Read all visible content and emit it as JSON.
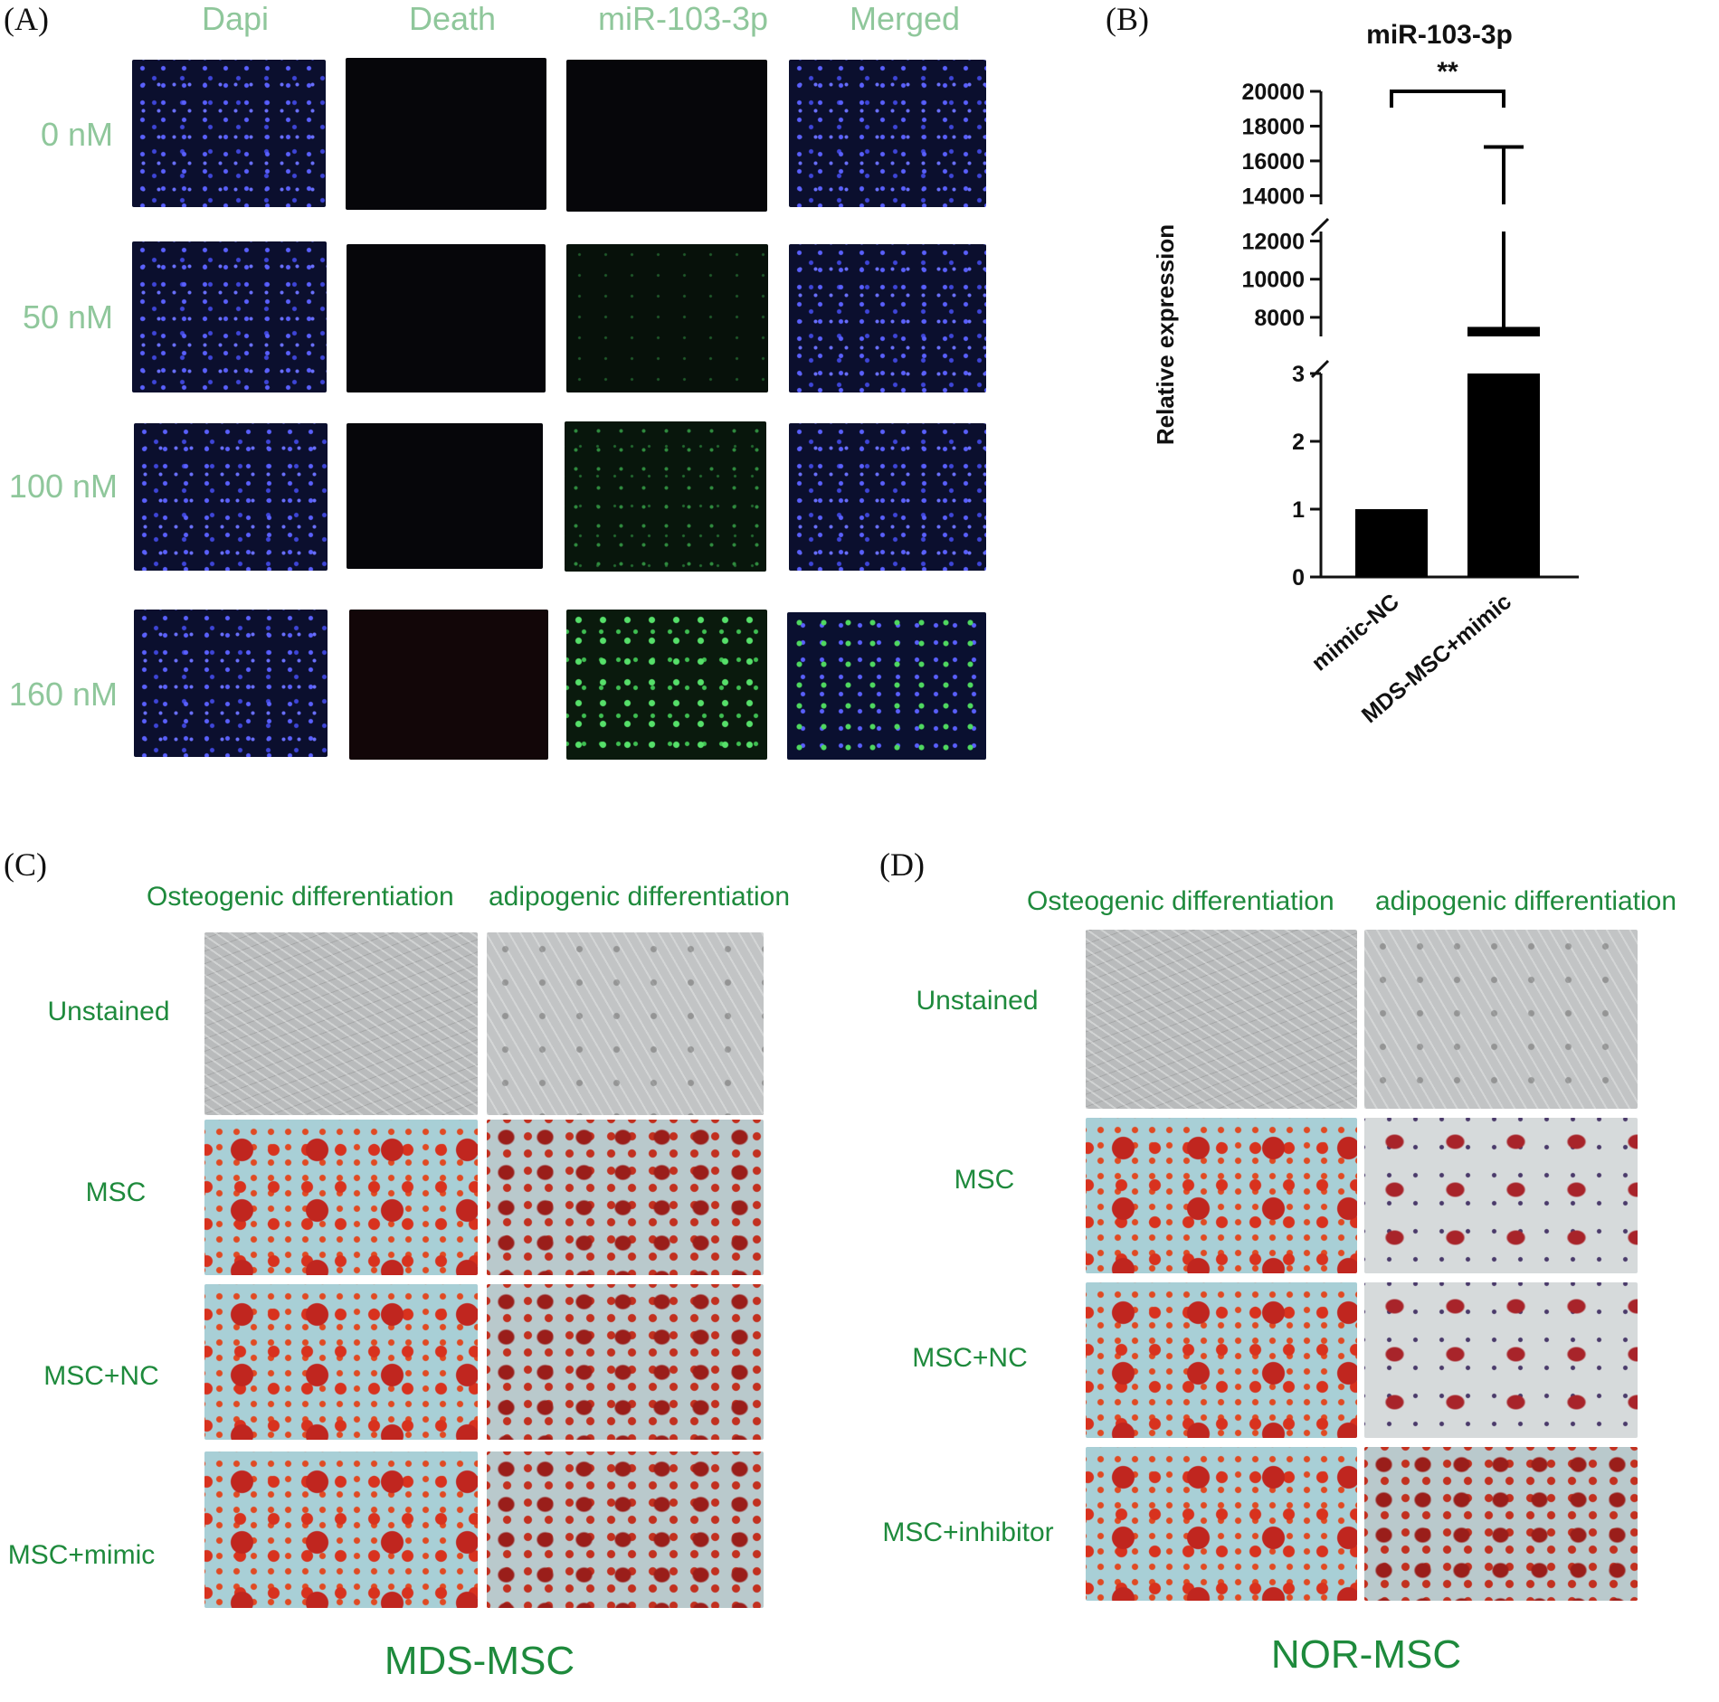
{
  "panel_letters": {
    "a": "(A)",
    "b": "(B)",
    "c": "(C)",
    "d": "(D)"
  },
  "panel_a": {
    "columns": [
      "Dapi",
      "Death",
      "miR-103-3p",
      "Merged"
    ],
    "rows": [
      "0 nM",
      "50 nM",
      "100 nM",
      "160 nM"
    ]
  },
  "chart_data": {
    "type": "bar",
    "title": "miR-103-3p",
    "ylabel": "Relative expression",
    "xlabel": "",
    "categories": [
      "mimic-NC",
      "MDS-MSC+mimic"
    ],
    "values": [
      1,
      7500
    ],
    "error_upper": [
      null,
      16800
    ],
    "significance": "**",
    "y_segments": [
      {
        "range": [
          0,
          3
        ],
        "ticks": [
          "0",
          "1",
          "2",
          "3"
        ]
      },
      {
        "range": [
          7000,
          12500
        ],
        "ticks": [
          "8000",
          "10000",
          "12000"
        ]
      },
      {
        "range": [
          13500,
          20000
        ],
        "ticks": [
          "14000",
          "16000",
          "18000",
          "20000"
        ]
      }
    ]
  },
  "panel_c": {
    "columns": [
      "Osteogenic differentiation",
      "adipogenic  differentiation"
    ],
    "rows": [
      "Unstained",
      "MSC",
      "MSC+NC",
      "MSC+mimic"
    ],
    "title": "MDS-MSC"
  },
  "panel_d": {
    "columns": [
      "Osteogenic differentiation",
      "adipogenic  differentiation"
    ],
    "rows": [
      "Unstained",
      "MSC",
      "MSC+NC",
      "MSC+inhibitor"
    ],
    "title": "NOR-MSC"
  }
}
